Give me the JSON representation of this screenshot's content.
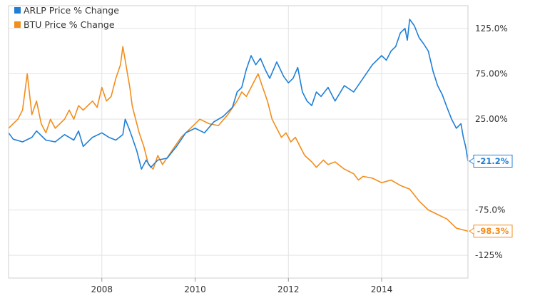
{
  "chart_data": {
    "type": "line",
    "x_unit": "year",
    "xlim": [
      2006.0,
      2015.85
    ],
    "ylim": [
      -150,
      150
    ],
    "y_ticks": [
      {
        "value": 125,
        "label": "125.0%"
      },
      {
        "value": 75,
        "label": "75.00%"
      },
      {
        "value": 25,
        "label": "25.00%"
      },
      {
        "value": -75,
        "label": "-75.0%"
      },
      {
        "value": -125,
        "label": "-125%"
      }
    ],
    "x_ticks": [
      {
        "value": 2008,
        "label": "2008"
      },
      {
        "value": 2010,
        "label": "2010"
      },
      {
        "value": 2012,
        "label": "2012"
      },
      {
        "value": 2014,
        "label": "2014"
      }
    ],
    "grid": {
      "horizontal": true,
      "vertical": true
    },
    "legend_position": "top-left",
    "series": [
      {
        "name": "ARLP Price % Change",
        "color": "#1f7fd6",
        "end_label": "-21.2%",
        "points": [
          [
            2006.0,
            10
          ],
          [
            2006.1,
            3
          ],
          [
            2006.3,
            0
          ],
          [
            2006.5,
            5
          ],
          [
            2006.6,
            12
          ],
          [
            2006.8,
            2
          ],
          [
            2007.0,
            0
          ],
          [
            2007.2,
            8
          ],
          [
            2007.4,
            2
          ],
          [
            2007.5,
            12
          ],
          [
            2007.6,
            -5
          ],
          [
            2007.8,
            5
          ],
          [
            2008.0,
            10
          ],
          [
            2008.15,
            5
          ],
          [
            2008.3,
            2
          ],
          [
            2008.45,
            8
          ],
          [
            2008.5,
            25
          ],
          [
            2008.58,
            15
          ],
          [
            2008.65,
            5
          ],
          [
            2008.75,
            -10
          ],
          [
            2008.85,
            -30
          ],
          [
            2008.95,
            -20
          ],
          [
            2009.05,
            -28
          ],
          [
            2009.2,
            -20
          ],
          [
            2009.4,
            -18
          ],
          [
            2009.6,
            -5
          ],
          [
            2009.8,
            10
          ],
          [
            2010.0,
            15
          ],
          [
            2010.2,
            10
          ],
          [
            2010.4,
            22
          ],
          [
            2010.6,
            28
          ],
          [
            2010.8,
            38
          ],
          [
            2010.9,
            55
          ],
          [
            2011.0,
            60
          ],
          [
            2011.1,
            80
          ],
          [
            2011.2,
            95
          ],
          [
            2011.3,
            85
          ],
          [
            2011.4,
            92
          ],
          [
            2011.5,
            80
          ],
          [
            2011.6,
            70
          ],
          [
            2011.75,
            88
          ],
          [
            2011.9,
            72
          ],
          [
            2012.0,
            65
          ],
          [
            2012.1,
            70
          ],
          [
            2012.2,
            82
          ],
          [
            2012.3,
            55
          ],
          [
            2012.4,
            45
          ],
          [
            2012.5,
            40
          ],
          [
            2012.6,
            55
          ],
          [
            2012.7,
            50
          ],
          [
            2012.85,
            60
          ],
          [
            2013.0,
            45
          ],
          [
            2013.2,
            62
          ],
          [
            2013.4,
            55
          ],
          [
            2013.6,
            70
          ],
          [
            2013.8,
            85
          ],
          [
            2014.0,
            95
          ],
          [
            2014.1,
            90
          ],
          [
            2014.2,
            100
          ],
          [
            2014.3,
            105
          ],
          [
            2014.4,
            120
          ],
          [
            2014.5,
            125
          ],
          [
            2014.55,
            112
          ],
          [
            2014.6,
            135
          ],
          [
            2014.7,
            128
          ],
          [
            2014.8,
            115
          ],
          [
            2014.9,
            108
          ],
          [
            2015.0,
            100
          ],
          [
            2015.1,
            78
          ],
          [
            2015.2,
            62
          ],
          [
            2015.3,
            52
          ],
          [
            2015.4,
            38
          ],
          [
            2015.5,
            25
          ],
          [
            2015.6,
            15
          ],
          [
            2015.7,
            20
          ],
          [
            2015.75,
            5
          ],
          [
            2015.8,
            -5
          ],
          [
            2015.85,
            -21.2
          ]
        ]
      },
      {
        "name": "BTU Price % Change",
        "color": "#f28e1c",
        "end_label": "-98.3%",
        "points": [
          [
            2006.0,
            15
          ],
          [
            2006.1,
            20
          ],
          [
            2006.2,
            25
          ],
          [
            2006.3,
            35
          ],
          [
            2006.4,
            75
          ],
          [
            2006.5,
            30
          ],
          [
            2006.6,
            45
          ],
          [
            2006.7,
            20
          ],
          [
            2006.8,
            10
          ],
          [
            2006.9,
            25
          ],
          [
            2007.0,
            15
          ],
          [
            2007.1,
            20
          ],
          [
            2007.2,
            25
          ],
          [
            2007.3,
            35
          ],
          [
            2007.4,
            25
          ],
          [
            2007.5,
            40
          ],
          [
            2007.6,
            35
          ],
          [
            2007.8,
            45
          ],
          [
            2007.9,
            38
          ],
          [
            2008.0,
            60
          ],
          [
            2008.1,
            45
          ],
          [
            2008.2,
            50
          ],
          [
            2008.3,
            70
          ],
          [
            2008.4,
            85
          ],
          [
            2008.45,
            105
          ],
          [
            2008.5,
            90
          ],
          [
            2008.55,
            75
          ],
          [
            2008.6,
            60
          ],
          [
            2008.65,
            40
          ],
          [
            2008.7,
            30
          ],
          [
            2008.8,
            10
          ],
          [
            2008.9,
            -5
          ],
          [
            2009.0,
            -25
          ],
          [
            2009.1,
            -30
          ],
          [
            2009.2,
            -15
          ],
          [
            2009.3,
            -25
          ],
          [
            2009.5,
            -10
          ],
          [
            2009.7,
            5
          ],
          [
            2009.9,
            15
          ],
          [
            2010.1,
            25
          ],
          [
            2010.3,
            20
          ],
          [
            2010.5,
            18
          ],
          [
            2010.7,
            30
          ],
          [
            2010.9,
            45
          ],
          [
            2011.0,
            55
          ],
          [
            2011.1,
            50
          ],
          [
            2011.2,
            60
          ],
          [
            2011.3,
            70
          ],
          [
            2011.35,
            75
          ],
          [
            2011.45,
            60
          ],
          [
            2011.55,
            45
          ],
          [
            2011.65,
            25
          ],
          [
            2011.75,
            15
          ],
          [
            2011.85,
            5
          ],
          [
            2011.95,
            10
          ],
          [
            2012.05,
            0
          ],
          [
            2012.15,
            5
          ],
          [
            2012.25,
            -5
          ],
          [
            2012.35,
            -15
          ],
          [
            2012.5,
            -22
          ],
          [
            2012.6,
            -28
          ],
          [
            2012.75,
            -20
          ],
          [
            2012.85,
            -25
          ],
          [
            2013.0,
            -22
          ],
          [
            2013.2,
            -30
          ],
          [
            2013.4,
            -35
          ],
          [
            2013.5,
            -42
          ],
          [
            2013.6,
            -38
          ],
          [
            2013.8,
            -40
          ],
          [
            2014.0,
            -45
          ],
          [
            2014.2,
            -42
          ],
          [
            2014.4,
            -48
          ],
          [
            2014.6,
            -52
          ],
          [
            2014.8,
            -65
          ],
          [
            2015.0,
            -75
          ],
          [
            2015.2,
            -80
          ],
          [
            2015.4,
            -85
          ],
          [
            2015.6,
            -95
          ],
          [
            2015.85,
            -98.3
          ]
        ]
      }
    ]
  }
}
